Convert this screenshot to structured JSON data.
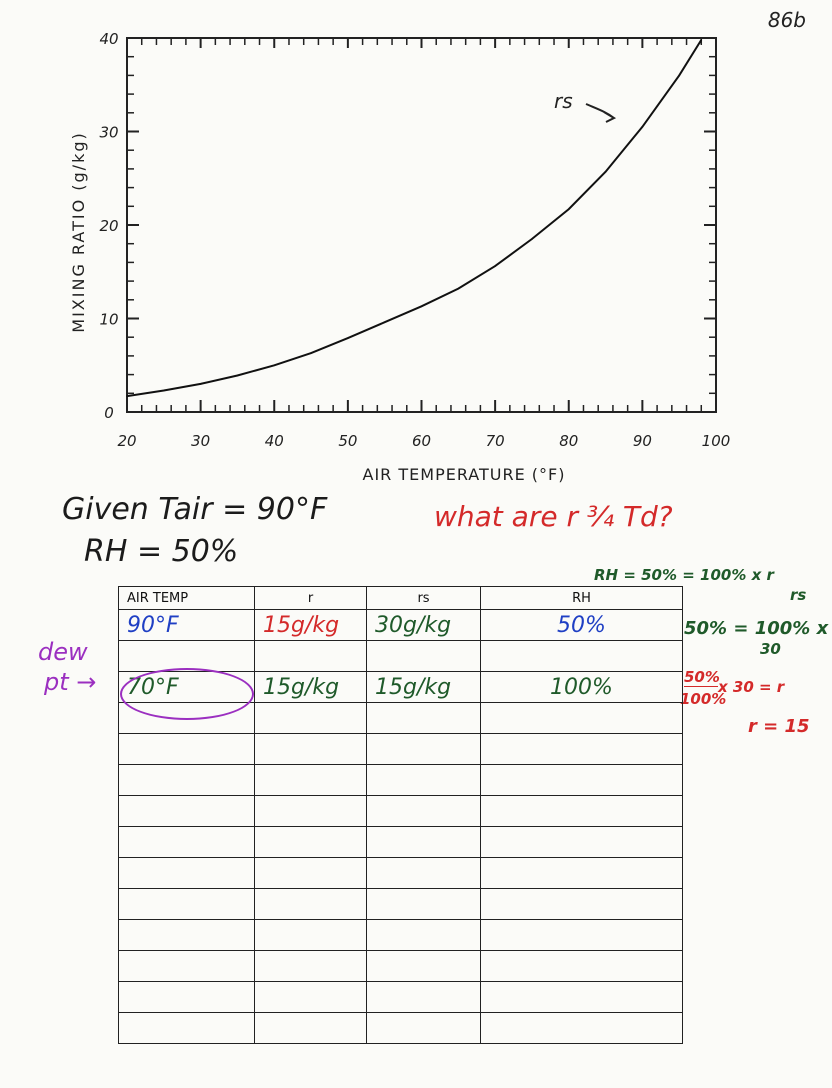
{
  "page_number": "86b",
  "chart_data": {
    "type": "line",
    "xlabel": "AIR TEMPERATURE (°F)",
    "ylabel": "MIXING RATIO (g/kg)",
    "x_ticks": [
      "20",
      "30",
      "40",
      "50",
      "60",
      "70",
      "80",
      "90",
      "100"
    ],
    "y_ticks": [
      "0",
      "10",
      "20",
      "30",
      "40"
    ],
    "xlim": [
      20,
      100
    ],
    "ylim": [
      0,
      40
    ],
    "annotation": "rs",
    "series": [
      {
        "name": "rs",
        "x": [
          20,
          25,
          30,
          35,
          40,
          45,
          50,
          55,
          60,
          65,
          70,
          75,
          80,
          85,
          90,
          95,
          98
        ],
        "y": [
          1.7,
          2.3,
          3.0,
          3.9,
          5.0,
          6.3,
          7.9,
          9.6,
          11.3,
          13.2,
          15.6,
          18.5,
          21.7,
          25.7,
          30.5,
          36.0,
          39.8
        ]
      }
    ]
  },
  "given": {
    "line1": "Given Tair = 90°F",
    "line2": "RH = 50%",
    "question": "what are r ¾ Td?"
  },
  "work": {
    "line1": "RH = 50% = 100% x r",
    "line1b": "rs",
    "line2": "50% = 100% x r",
    "line2b": "30",
    "line3a": "50%",
    "line3b": "100%",
    "line3c": "x 30 = r",
    "line4": "r = 15"
  },
  "dew_label": {
    "line1": "dew",
    "line2": "pt →"
  },
  "table": {
    "headers": [
      "AIR TEMP",
      "r",
      "rs",
      "RH"
    ],
    "rows": [
      [
        "90°F",
        "15g/kg",
        "30g/kg",
        "50%"
      ],
      [
        "70°F",
        "15g/kg",
        "15g/kg",
        "100%"
      ]
    ],
    "empty_rows": 11
  },
  "colors": {
    "blue": "#1f3fc4",
    "red": "#d42a2a",
    "green": "#1f5a2a",
    "purple": "#9b2fc0",
    "ink": "#1b1b1b"
  }
}
